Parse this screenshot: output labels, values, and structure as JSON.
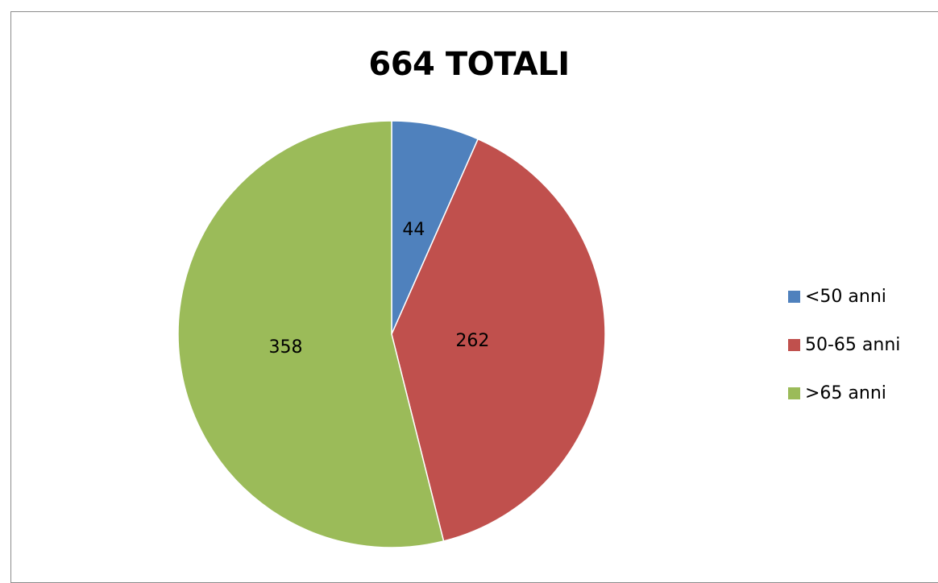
{
  "chart_data": {
    "type": "pie",
    "title": "664 TOTALI",
    "categories": [
      "<50 anni",
      "50-65 anni",
      ">65 anni"
    ],
    "values": [
      44,
      262,
      358
    ],
    "data_labels": [
      "44",
      "262",
      "358"
    ],
    "colors": [
      "#4f81bd",
      "#c0504d",
      "#9bbb59"
    ],
    "start_angle": "12 o'clock",
    "direction": "clockwise",
    "legend": "right"
  }
}
